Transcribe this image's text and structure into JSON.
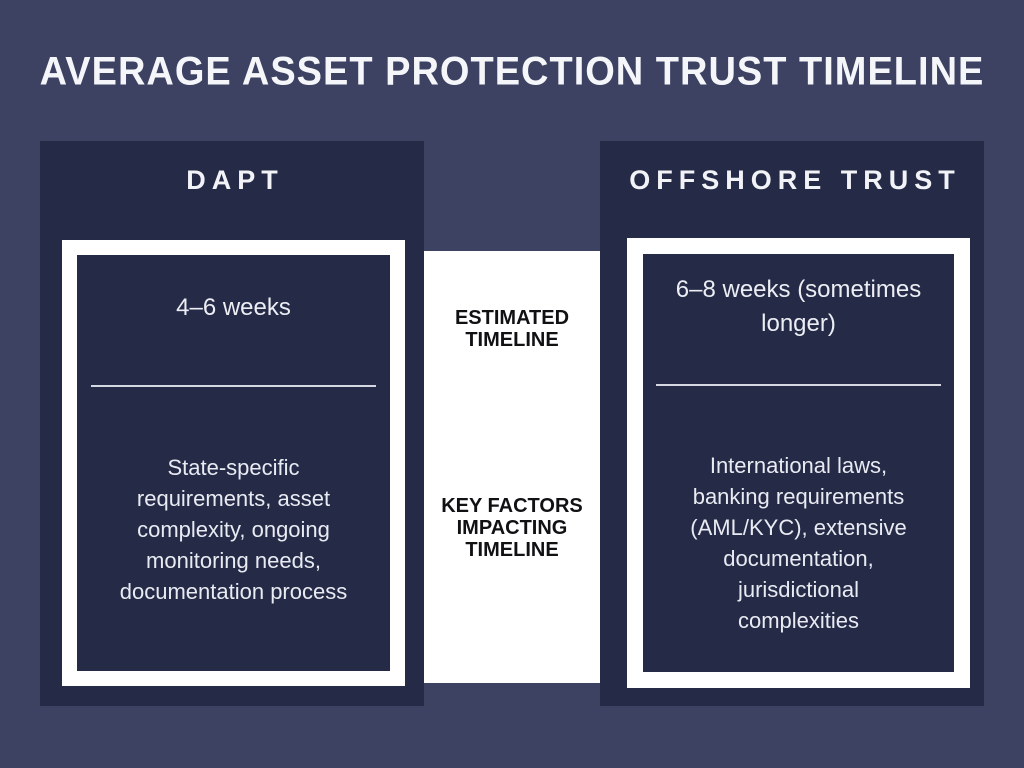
{
  "title": "AVERAGE ASSET PROTECTION TRUST TIMELINE",
  "row_labels": {
    "estimated": "ESTIMATED\nTIMELINE",
    "key_factors": "KEY FACTORS\nIMPACTING\nTIMELINE"
  },
  "columns": [
    {
      "header": "DAPT",
      "estimated_timeline": "4–6 weeks",
      "key_factors": "State-specific\nrequirements, asset\ncomplexity, ongoing\nmonitoring needs,\ndocumentation process"
    },
    {
      "header": "OFFSHORE TRUST",
      "estimated_timeline": "6–8 weeks (sometimes\nlonger)",
      "key_factors": "International laws,\nbanking requirements\n(AML/KYC), extensive\ndocumentation,\njurisdictional\ncomplexities"
    }
  ],
  "colors": {
    "background": "#3D4162",
    "panel": "#252A47",
    "card_frame": "#FFFFFF",
    "center_column": "#FFFFFF",
    "row_label_text": "#111114",
    "light_text": "#ECEEF4",
    "divider": "#D5D8E1"
  }
}
